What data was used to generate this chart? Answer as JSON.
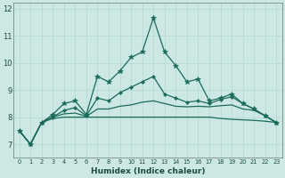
{
  "xlabel": "Humidex (Indice chaleur)",
  "bg_color": "#cde8e4",
  "grid_color": "#b0d8d0",
  "line_color": "#1a6b5a",
  "x": [
    0,
    1,
    2,
    3,
    4,
    5,
    6,
    7,
    8,
    9,
    10,
    11,
    12,
    13,
    14,
    15,
    16,
    17,
    18,
    19,
    20,
    21,
    22,
    23
  ],
  "line1": [
    7.5,
    7.0,
    7.8,
    8.1,
    8.5,
    8.6,
    8.1,
    9.5,
    9.3,
    9.7,
    10.2,
    10.4,
    11.65,
    10.4,
    9.9,
    9.3,
    9.4,
    8.6,
    8.7,
    8.85,
    8.5,
    8.3,
    8.05,
    7.8
  ],
  "line2": [
    7.5,
    7.0,
    7.8,
    8.0,
    8.25,
    8.35,
    8.05,
    8.7,
    8.6,
    8.9,
    9.1,
    9.3,
    9.5,
    8.85,
    8.7,
    8.55,
    8.6,
    8.5,
    8.65,
    8.75,
    8.5,
    8.3,
    8.05,
    7.8
  ],
  "line3": [
    7.5,
    7.0,
    7.8,
    8.0,
    8.12,
    8.15,
    8.03,
    8.3,
    8.3,
    8.4,
    8.45,
    8.55,
    8.6,
    8.5,
    8.4,
    8.38,
    8.4,
    8.38,
    8.42,
    8.45,
    8.3,
    8.25,
    8.05,
    7.8
  ],
  "line4": [
    7.5,
    7.0,
    7.8,
    7.95,
    8.0,
    8.0,
    8.0,
    8.0,
    8.0,
    8.0,
    8.0,
    8.0,
    8.0,
    8.0,
    8.0,
    8.0,
    8.0,
    8.0,
    7.95,
    7.92,
    7.9,
    7.88,
    7.85,
    7.8
  ],
  "ylim": [
    6.5,
    12.2
  ],
  "yticks": [
    7,
    8,
    9,
    10,
    11,
    12
  ],
  "xticks": [
    0,
    1,
    2,
    3,
    4,
    5,
    6,
    7,
    8,
    9,
    10,
    11,
    12,
    13,
    14,
    15,
    16,
    17,
    18,
    19,
    20,
    21,
    22,
    23
  ]
}
